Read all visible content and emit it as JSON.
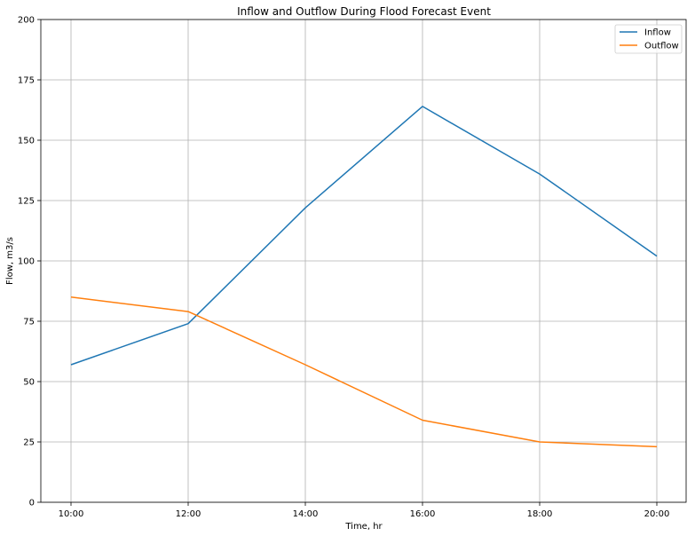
{
  "chart_data": {
    "type": "line",
    "title": "Inflow and Outflow During Flood Forecast Event",
    "xlabel": "Time, hr",
    "ylabel": "Flow, m3/s",
    "categories": [
      "10:00",
      "12:00",
      "14:00",
      "16:00",
      "18:00",
      "20:00"
    ],
    "yticks": [
      "0",
      "25",
      "50",
      "75",
      "100",
      "125",
      "150",
      "175",
      "200"
    ],
    "ylim": [
      0,
      200
    ],
    "grid": true,
    "legend_position": "top-right",
    "series": [
      {
        "name": "Inflow",
        "color": "#1f77b4",
        "values": [
          57,
          74,
          122,
          164,
          136,
          102
        ]
      },
      {
        "name": "Outflow",
        "color": "#ff7f0e",
        "values": [
          85,
          79,
          57,
          34,
          25,
          23
        ]
      }
    ]
  }
}
